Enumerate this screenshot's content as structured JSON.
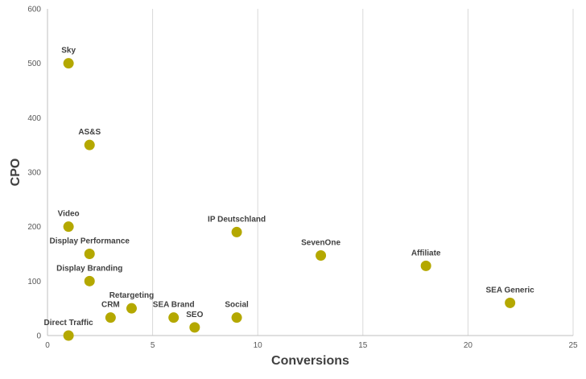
{
  "chart_data": {
    "type": "scatter",
    "xlabel": "Conversions",
    "ylabel": "CPO",
    "xlim": [
      0,
      25
    ],
    "ylim": [
      0,
      600
    ],
    "x_ticks": [
      0,
      5,
      10,
      15,
      20,
      25
    ],
    "y_ticks": [
      0,
      100,
      200,
      300,
      400,
      500,
      600
    ],
    "grid": "vertical-major",
    "marker_color": "#b4a800",
    "points": [
      {
        "label": "Sky",
        "x": 1,
        "y": 500
      },
      {
        "label": "AS&S",
        "x": 2,
        "y": 350
      },
      {
        "label": "Video",
        "x": 1,
        "y": 200
      },
      {
        "label": "Display Performance",
        "x": 2,
        "y": 150
      },
      {
        "label": "Display Branding",
        "x": 2,
        "y": 100
      },
      {
        "label": "Direct Traffic",
        "x": 1,
        "y": 0
      },
      {
        "label": "CRM",
        "x": 3,
        "y": 33
      },
      {
        "label": "Retargeting",
        "x": 4,
        "y": 50
      },
      {
        "label": "SEA Brand",
        "x": 6,
        "y": 33
      },
      {
        "label": "SEO",
        "x": 7,
        "y": 15
      },
      {
        "label": "Social",
        "x": 9,
        "y": 33
      },
      {
        "label": "IP Deutschland",
        "x": 9,
        "y": 190
      },
      {
        "label": "SevenOne",
        "x": 13,
        "y": 147
      },
      {
        "label": "Affiliate",
        "x": 18,
        "y": 128
      },
      {
        "label": "SEA Generic",
        "x": 22,
        "y": 60
      }
    ]
  }
}
